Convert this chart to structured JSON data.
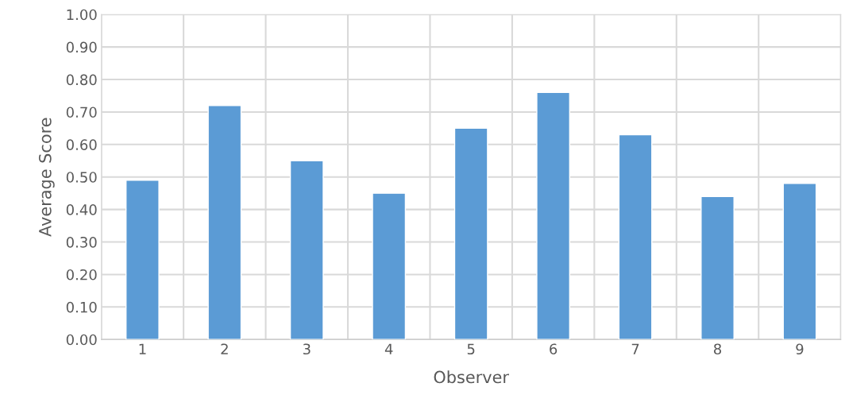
{
  "chart_data": {
    "type": "bar",
    "xlabel": "Observer",
    "ylabel": "Average Score",
    "categories": [
      "1",
      "2",
      "3",
      "4",
      "5",
      "6",
      "7",
      "8",
      "9"
    ],
    "values": [
      0.49,
      0.72,
      0.55,
      0.45,
      0.65,
      0.76,
      0.63,
      0.44,
      0.48
    ],
    "color": "#5b9bd5",
    "ylim": [
      0,
      1
    ],
    "yticks": [
      {
        "value": 0,
        "label": "0.00"
      },
      {
        "value": 0.1,
        "label": "0.10"
      },
      {
        "value": 0.2,
        "label": "0.20"
      },
      {
        "value": 0.3,
        "label": "0.30"
      },
      {
        "value": 0.4,
        "label": "0.40"
      },
      {
        "value": 0.5,
        "label": "0.50"
      },
      {
        "value": 0.6,
        "label": "0.60"
      },
      {
        "value": 0.7,
        "label": "0.70"
      },
      {
        "value": 0.8,
        "label": "0.80"
      },
      {
        "value": 0.9,
        "label": "0.90"
      },
      {
        "value": 1,
        "label": "1.00"
      }
    ],
    "grid": true
  }
}
